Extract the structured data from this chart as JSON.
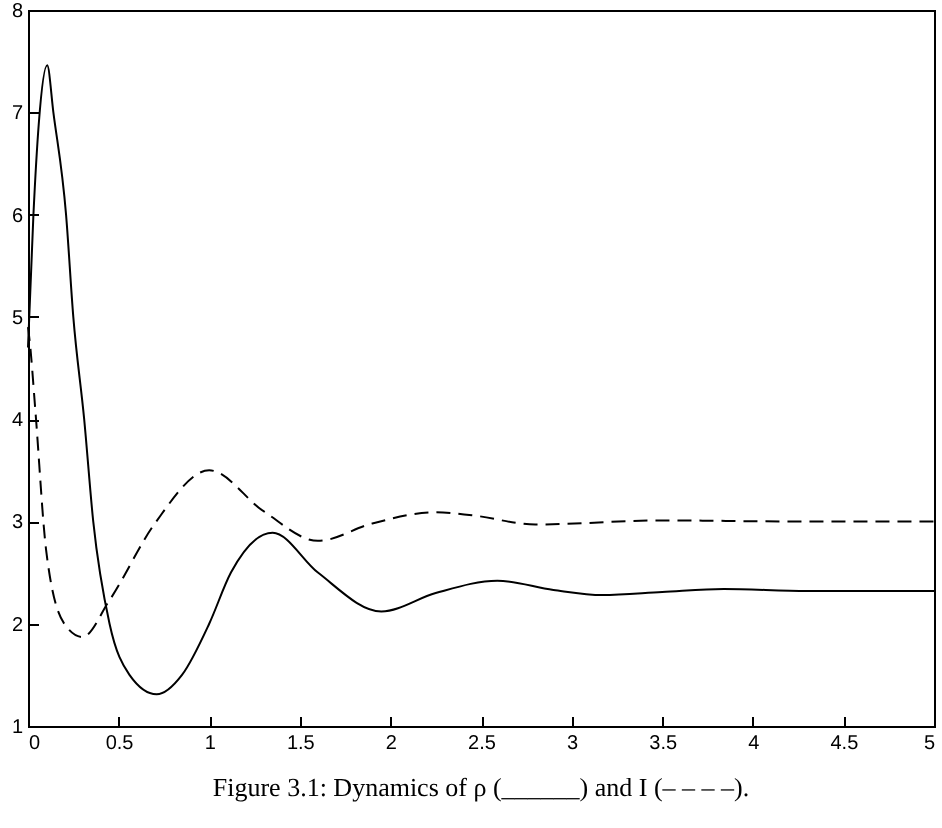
{
  "chart_data": {
    "type": "line",
    "annotations": [
      "Figure 3.1: Dynamics of ρ (______) and I (– – – –)."
    ],
    "xlim": [
      0,
      5
    ],
    "ylim": [
      1,
      8
    ],
    "xticks": [
      0,
      0.5,
      1,
      1.5,
      2,
      2.5,
      3,
      3.5,
      4,
      4.5,
      5
    ],
    "yticks": [
      1,
      2,
      3,
      4,
      5,
      6,
      7,
      8
    ],
    "grid": false,
    "marker": "none",
    "series": [
      {
        "color": "#000000",
        "line_style": "solid",
        "x": [
          0,
          0.03,
          0.06,
          0.106,
          0.14,
          0.21,
          0.25,
          0.31,
          0.36,
          0.45,
          0.56,
          0.71,
          0.85,
          1.0,
          1.12,
          1.35,
          1.6,
          1.95,
          2.25,
          2.59,
          2.9,
          3.17,
          3.5,
          3.84,
          4.3,
          5
        ],
        "values": [
          4.7,
          6.0,
          6.9,
          7.46,
          7.0,
          6.0,
          5.0,
          4.0,
          3.0,
          2.0,
          1.5,
          1.31,
          1.5,
          2.0,
          2.5,
          2.89,
          2.5,
          2.12,
          2.3,
          2.42,
          2.33,
          2.28,
          2.31,
          2.34,
          2.32,
          2.32
        ]
      },
      {
        "color": "#000000",
        "line_style": "dashed",
        "x": [
          0,
          0.01,
          0.04,
          0.1,
          0.2,
          0.3,
          0.45,
          0.7,
          1.0,
          1.3,
          1.6,
          1.9,
          2.25,
          2.45,
          2.8,
          3.5,
          4.2,
          5
        ],
        "values": [
          4.9,
          4.75,
          4.1,
          2.72,
          2.0,
          1.87,
          2.23,
          2.98,
          3.5,
          3.1,
          2.81,
          2.98,
          3.09,
          3.06,
          2.97,
          3.01,
          3.0,
          3.0
        ]
      }
    ]
  }
}
